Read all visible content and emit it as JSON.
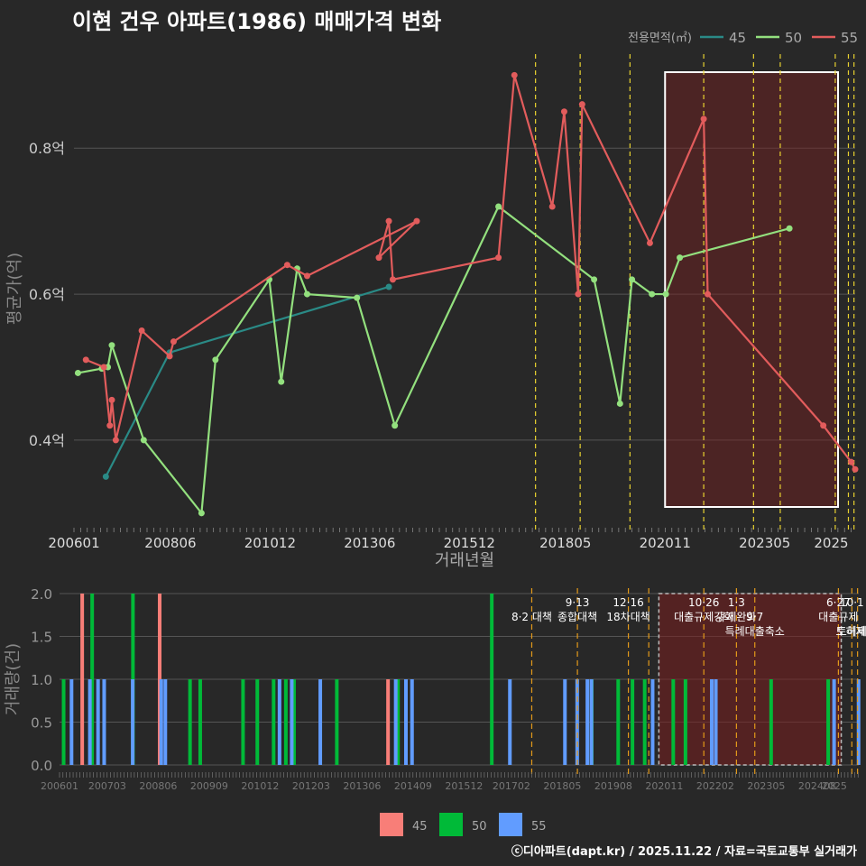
{
  "title": "이현 건우 아파트(1986) 매매가격 변화",
  "footer": "ⓒ디아파트(dapt.kr) / 2025.11.22 / 자료=국토교통부 실거래가",
  "colors": {
    "s45": "#2a8a86",
    "s50": "#93e07e",
    "s55": "#e25c5c",
    "b45": "#f87e78",
    "b50": "#00ba38",
    "b55": "#619cff",
    "policy": "#e8d230",
    "policy_bottom": "#e39a1a"
  },
  "chart_data": [
    {
      "type": "line",
      "title": "이현 건우 아파트(1986) 매매가격 변화",
      "xlabel": "거래년월",
      "ylabel": "평균가(억)",
      "xlim": [
        2006.0,
        2025.6
      ],
      "ylim": [
        0.28,
        0.935
      ],
      "x_ticks": [
        "200601",
        "200806",
        "201012",
        "201306",
        "201512",
        "201805",
        "202011",
        "202305",
        "2025"
      ],
      "x_tick_values": [
        2006.0,
        2008.42,
        2010.92,
        2013.42,
        2015.92,
        2018.33,
        2020.83,
        2023.33,
        2025.0
      ],
      "y_ticks": [
        "0.4억",
        "0.6억",
        "0.8억"
      ],
      "y_tick_values": [
        0.4,
        0.6,
        0.8
      ],
      "legend_title": "전용면적(㎡)",
      "highlight_region": [
        2020.83,
        2025.17
      ],
      "policy_lines": [
        2017.58,
        2018.7,
        2019.95,
        2021.8,
        2023.05,
        2023.72,
        2025.1,
        2025.43,
        2025.57
      ],
      "series": [
        {
          "name": "45",
          "x": [
            2006.8,
            2008.4,
            2013.9
          ],
          "y": [
            0.35,
            0.52,
            0.61
          ]
        },
        {
          "name": "50",
          "x": [
            2006.1,
            2006.7,
            2006.85,
            2006.95,
            2007.75,
            2009.2,
            2009.55,
            2010.9,
            2011.2,
            2011.6,
            2011.85,
            2013.1,
            2014.05,
            2016.65,
            2019.05,
            2019.7,
            2020.0,
            2020.5,
            2020.85,
            2021.2,
            2023.95
          ],
          "y": [
            0.492,
            0.498,
            0.5,
            0.53,
            0.4,
            0.3,
            0.51,
            0.62,
            0.48,
            0.635,
            0.6,
            0.595,
            0.42,
            0.72,
            0.62,
            0.45,
            0.62,
            0.6,
            0.6,
            0.65,
            0.69
          ]
        },
        {
          "name": "55",
          "x": [
            2006.3,
            2006.75,
            2006.9,
            2006.95,
            2007.05,
            2007.7,
            2008.4,
            2008.5,
            2011.35,
            2011.85,
            2014.6,
            2013.65,
            2013.9,
            2014.0,
            2016.65,
            2017.05,
            2018.0,
            2018.3,
            2018.65,
            2018.75,
            2020.45,
            2021.8,
            2021.9,
            2024.8,
            2025.5,
            2025.6
          ],
          "y": [
            0.51,
            0.5,
            0.42,
            0.455,
            0.4,
            0.55,
            0.515,
            0.535,
            0.64,
            0.625,
            0.7,
            0.65,
            0.7,
            0.62,
            0.65,
            0.9,
            0.72,
            0.85,
            0.6,
            0.86,
            0.67,
            0.84,
            0.6,
            0.42,
            0.37,
            0.36
          ]
        }
      ]
    },
    {
      "type": "bar",
      "xlabel": "",
      "ylabel": "거래량(건)",
      "xlim": [
        2006.0,
        2025.6
      ],
      "ylim": [
        0,
        2.0
      ],
      "x_ticks": [
        "200601",
        "200703",
        "200806",
        "200909",
        "201012",
        "201203",
        "201306",
        "201409",
        "201512",
        "201702",
        "201805",
        "201908",
        "202011",
        "202202",
        "202305",
        "202408",
        "2025"
      ],
      "x_tick_values": [
        2006.0,
        2007.17,
        2008.42,
        2009.67,
        2010.92,
        2012.17,
        2013.42,
        2014.67,
        2015.92,
        2017.08,
        2018.33,
        2019.58,
        2020.83,
        2022.08,
        2023.33,
        2024.58,
        2025.0
      ],
      "y_ticks": [
        "0.0",
        "0.5",
        "1.0",
        "1.5",
        "2.0"
      ],
      "y_tick_values": [
        0,
        0.5,
        1.0,
        1.5,
        2.0
      ],
      "highlight_region": [
        2020.83,
        2025.17
      ],
      "policy_lines": [
        2017.58,
        2018.7,
        2019.95,
        2020.45,
        2021.8,
        2022.6,
        2023.05,
        2025.1,
        2025.43,
        2025.57
      ],
      "policy_labels": [
        {
          "text": "8·2 대책",
          "x": 2017.58,
          "row": 1
        },
        {
          "text": "9·13",
          "x": 2018.7,
          "row": 0
        },
        {
          "text": "종합대책",
          "x": 2018.7,
          "row": 1
        },
        {
          "text": "12·16",
          "x": 2019.95,
          "row": 0
        },
        {
          "text": "18차대책",
          "x": 2019.95,
          "row": 1
        },
        {
          "text": "10·26",
          "x": 2021.8,
          "row": 0
        },
        {
          "text": "대출규제강화",
          "x": 2021.8,
          "row": 1
        },
        {
          "text": "1·3",
          "x": 2022.6,
          "row": 0
        },
        {
          "text": "규제완화",
          "x": 2022.6,
          "row": 1
        },
        {
          "text": "9·7",
          "x": 2023.05,
          "row": 1
        },
        {
          "text": "특례대출축소",
          "x": 2023.05,
          "row": 2
        },
        {
          "text": "6·27",
          "x": 2025.1,
          "row": 0
        },
        {
          "text": "대출규제",
          "x": 2025.1,
          "row": 1
        },
        {
          "text": "10·1",
          "x": 2025.43,
          "row": 0
        },
        {
          "text": "토허제",
          "x": 2025.4,
          "row": 2
        },
        {
          "text": "토허제",
          "x": 2025.43,
          "row": 2
        }
      ],
      "legend": [
        "45",
        "50",
        "55"
      ],
      "series": [
        {
          "name": "45",
          "x": [
            2006.6,
            2008.5,
            2014.1
          ],
          "values": [
            2,
            2,
            1
          ]
        },
        {
          "name": "50",
          "x": [
            2006.1,
            2006.8,
            2007.8,
            2009.2,
            2009.45,
            2010.5,
            2010.85,
            2011.25,
            2011.55,
            2011.75,
            2012.8,
            2014.3,
            2016.6,
            2019.05,
            2019.7,
            2020.05,
            2020.35,
            2021.05,
            2021.35,
            2023.45,
            2024.85
          ],
          "values": [
            1,
            2,
            2,
            1,
            1,
            1,
            1,
            1,
            1,
            1,
            1,
            1,
            2,
            1,
            1,
            1,
            1,
            1,
            1,
            1,
            1
          ]
        },
        {
          "name": "55",
          "x": [
            2006.25,
            2006.7,
            2006.9,
            2007.05,
            2007.75,
            2008.45,
            2008.55,
            2011.35,
            2011.65,
            2012.35,
            2014.2,
            2014.45,
            2014.6,
            2017.0,
            2018.35,
            2018.65,
            2018.9,
            2019.0,
            2020.5,
            2021.95,
            2022.05,
            2024.95,
            2025.55
          ],
          "values": [
            1,
            1,
            1,
            1,
            1,
            1,
            1,
            1,
            1,
            1,
            1,
            1,
            1,
            1,
            1,
            1,
            1,
            1,
            1,
            1,
            1,
            1,
            1
          ]
        }
      ]
    }
  ]
}
